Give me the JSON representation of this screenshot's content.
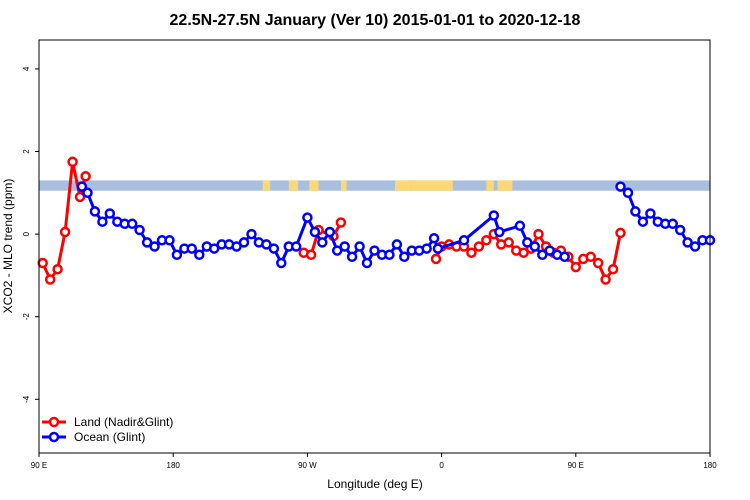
{
  "chart_data": {
    "type": "line",
    "title": "22.5N-27.5N January (Ver 10)   2015-01-01 to 2020-12-18",
    "xlabel": "Longitude (deg E)",
    "ylabel": "XCO2 - MLO trend (ppm)",
    "xlim": [
      90,
      450
    ],
    "ylim": [
      -5.3,
      4.7
    ],
    "x_ticks": [
      {
        "value": 90,
        "label": "90 E"
      },
      {
        "value": 162,
        "label": "180"
      },
      {
        "value": 234,
        "label": "90 W"
      },
      {
        "value": 306,
        "label": "0"
      },
      {
        "value": 378,
        "label": "90 E"
      },
      {
        "value": 450,
        "label": "180"
      }
    ],
    "y_ticks": [
      {
        "value": -4,
        "label": "-4"
      },
      {
        "value": -2,
        "label": "-2"
      },
      {
        "value": 0,
        "label": "0"
      },
      {
        "value": 2,
        "label": "2"
      },
      {
        "value": 4,
        "label": "4"
      }
    ],
    "land_ocean_strip": {
      "y_range": [
        1.05,
        1.3
      ],
      "ocean_color": "#a9bfe0",
      "land_color": "#fbd775",
      "land_segments": [
        [
          210,
          214
        ],
        [
          224,
          229
        ],
        [
          235,
          240
        ],
        [
          252,
          255
        ],
        [
          281,
          290
        ],
        [
          290,
          312
        ],
        [
          330,
          334
        ],
        [
          336,
          344
        ]
      ]
    },
    "legend": {
      "position": "bottom-left"
    },
    "series": [
      {
        "name": "Land (Nadir&Glint)",
        "color": "#ff0000",
        "x": [
          92,
          96,
          100,
          104,
          108,
          112,
          115,
          232,
          236,
          240,
          248,
          252,
          303,
          306,
          310,
          314,
          318,
          322,
          326,
          330,
          334,
          338,
          342,
          346,
          350,
          354,
          358,
          362,
          366,
          370,
          374,
          378,
          382,
          386,
          390,
          394,
          398,
          402
        ],
        "values": [
          -0.7,
          -1.1,
          -0.85,
          0.05,
          1.75,
          0.9,
          1.4,
          -0.45,
          -0.5,
          0.1,
          -0.05,
          0.28,
          -0.6,
          -0.3,
          -0.25,
          -0.3,
          -0.3,
          -0.45,
          -0.3,
          -0.15,
          0.0,
          -0.25,
          -0.2,
          -0.4,
          -0.45,
          -0.35,
          0.0,
          -0.3,
          -0.45,
          -0.4,
          -0.55,
          -0.8,
          -0.6,
          -0.55,
          -0.7,
          -1.1,
          -0.85,
          0.03
        ]
      },
      {
        "name": "Ocean (Glint)",
        "color": "#0000ff",
        "x": [
          113,
          116,
          120,
          124,
          128,
          132,
          136,
          140,
          144,
          148,
          152,
          156,
          160,
          164,
          168,
          172,
          176,
          180,
          184,
          188,
          192,
          196,
          200,
          204,
          208,
          212,
          216,
          220,
          224,
          228,
          234,
          238,
          242,
          246,
          250,
          254,
          258,
          262,
          266,
          270,
          274,
          278,
          282,
          286,
          290,
          294,
          298,
          302,
          304,
          318,
          334,
          337,
          348,
          352,
          356,
          360,
          364,
          368,
          372,
          402,
          406,
          410,
          414,
          418,
          422,
          426,
          430,
          434,
          438,
          442,
          446,
          450
        ],
        "values": [
          1.15,
          1.0,
          0.55,
          0.3,
          0.5,
          0.3,
          0.25,
          0.25,
          0.1,
          -0.2,
          -0.3,
          -0.15,
          -0.15,
          -0.5,
          -0.35,
          -0.35,
          -0.5,
          -0.3,
          -0.35,
          -0.25,
          -0.25,
          -0.3,
          -0.2,
          0.0,
          -0.2,
          -0.25,
          -0.35,
          -0.7,
          -0.3,
          -0.3,
          0.4,
          0.05,
          -0.2,
          0.05,
          -0.4,
          -0.3,
          -0.55,
          -0.3,
          -0.7,
          -0.4,
          -0.5,
          -0.5,
          -0.25,
          -0.55,
          -0.4,
          -0.4,
          -0.35,
          -0.1,
          -0.35,
          -0.15,
          0.45,
          0.05,
          0.2,
          -0.2,
          -0.3,
          -0.5,
          -0.4,
          -0.5,
          -0.55,
          1.15,
          1.0,
          0.55,
          0.3,
          0.5,
          0.3,
          0.25,
          0.25,
          0.1,
          -0.2,
          -0.3,
          -0.15,
          -0.15
        ]
      }
    ]
  }
}
